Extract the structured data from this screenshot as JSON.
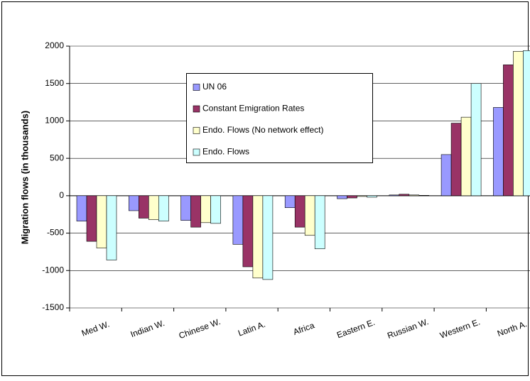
{
  "chart_data": {
    "type": "bar",
    "y_label": "Migration flows (in thousands)",
    "categories": [
      "Med W.",
      "Indian W.",
      "Chinese W.",
      "Latin A.",
      "Africa",
      "Eastern E.",
      "Russian W.",
      "Western E.",
      "North A."
    ],
    "series": [
      {
        "name": "UN 06",
        "color": "#9999ff",
        "values": [
          -340,
          -200,
          -330,
          -650,
          -160,
          -40,
          10,
          550,
          1180
        ]
      },
      {
        "name": "Constant Emigration Rates",
        "color": "#993366",
        "values": [
          -610,
          -300,
          -420,
          -950,
          -420,
          -30,
          20,
          970,
          1750
        ]
      },
      {
        "name": "Endo. Flows (No network effect)",
        "color": "#ffffcc",
        "values": [
          -700,
          -320,
          -360,
          -1100,
          -530,
          -10,
          10,
          1050,
          1930
        ]
      },
      {
        "name": "Endo. Flows",
        "color": "#ccffff",
        "values": [
          -860,
          -340,
          -370,
          -1120,
          -710,
          -20,
          5,
          1500,
          1940
        ]
      }
    ],
    "ylim": [
      -1500,
      2000
    ],
    "yticks": [
      -1500,
      -1000,
      -500,
      0,
      500,
      1000,
      1500,
      2000
    ],
    "grid": true
  }
}
